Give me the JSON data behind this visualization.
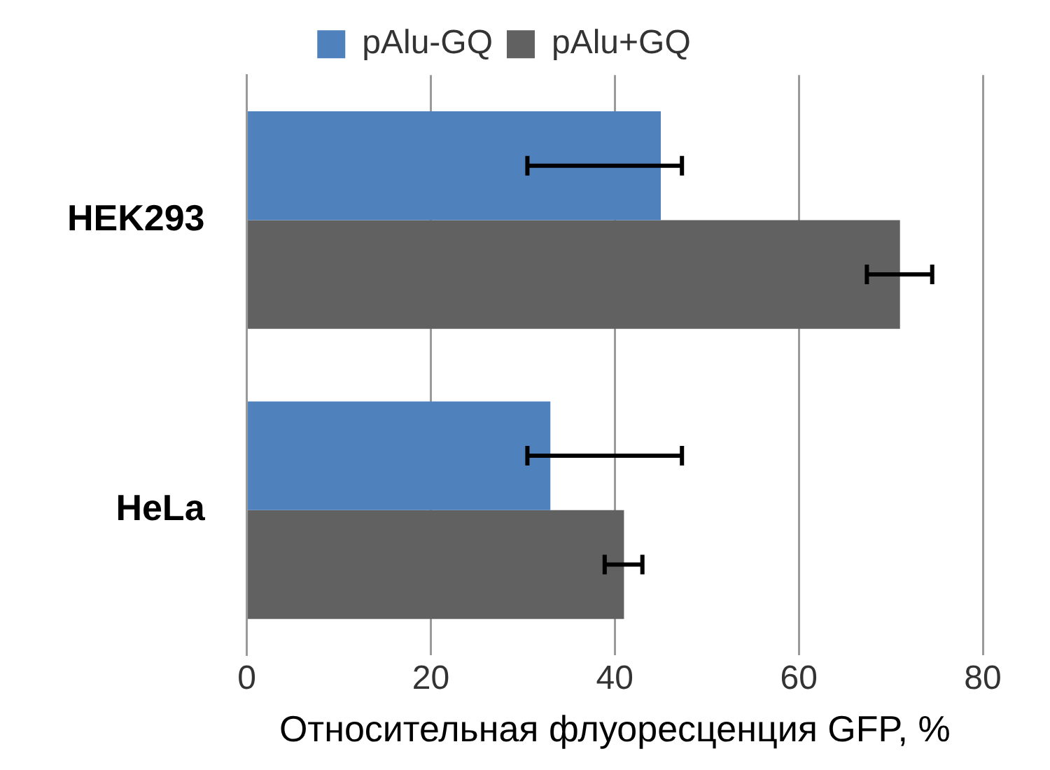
{
  "chart_data": {
    "type": "bar",
    "orientation": "horizontal",
    "xlabel": "Относительная флуоресценция GFP, %",
    "categories": [
      "HEK293",
      "HeLa"
    ],
    "series": [
      {
        "name": "pAlu-GQ",
        "color": "#4f81bd",
        "values": [
          45,
          33
        ],
        "errors": [
          [
            30.5,
            47.3
          ],
          [
            30.5,
            47.3
          ]
        ]
      },
      {
        "name": "pAlu+GQ",
        "color": "#616161",
        "values": [
          71,
          41
        ],
        "errors": [
          [
            67.4,
            74.5
          ],
          [
            38.9,
            43
          ]
        ]
      }
    ],
    "xlim": [
      0,
      80
    ],
    "xticks": [
      0,
      20,
      40,
      60,
      80
    ],
    "grid": "x",
    "legend": "top"
  }
}
